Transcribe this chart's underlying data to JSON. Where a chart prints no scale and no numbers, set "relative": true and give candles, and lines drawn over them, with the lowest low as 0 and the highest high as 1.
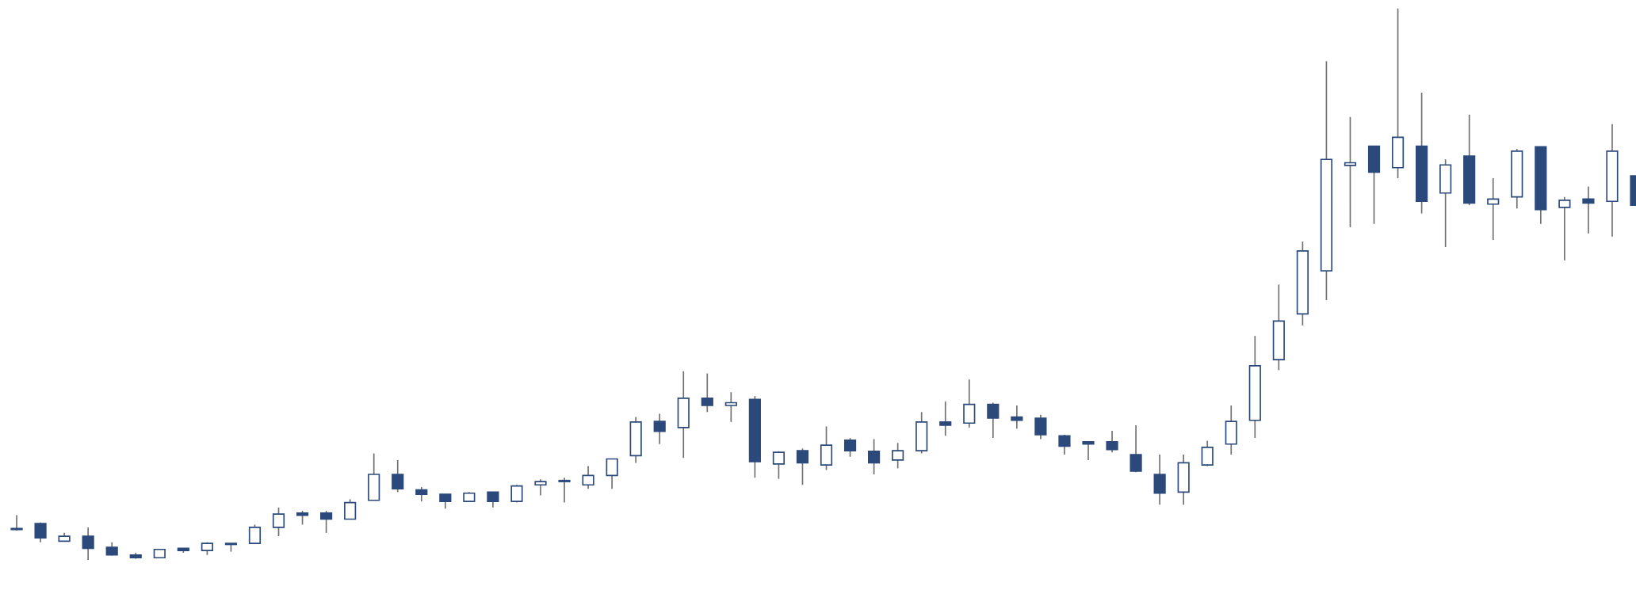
{
  "chart_data": {
    "type": "candlestick",
    "relative": true,
    "color": "#2b4a7b",
    "categories": [
      null,
      null,
      null,
      null,
      null,
      null,
      null,
      null,
      null,
      null,
      null,
      null,
      null,
      null,
      null,
      null,
      null,
      null,
      null,
      null,
      null,
      null,
      null,
      null,
      null,
      null,
      null,
      null,
      null,
      null,
      null,
      null,
      null,
      null,
      null,
      null,
      null,
      null,
      null,
      null,
      null,
      null,
      null,
      null,
      null,
      null,
      null,
      null,
      null,
      null,
      null,
      null,
      null,
      null,
      null,
      null,
      null,
      null,
      null,
      null,
      null,
      null,
      null,
      null,
      null,
      null,
      null,
      null,
      null
    ],
    "ohlc": [
      [
        0.057,
        0.081,
        0.053,
        0.055
      ],
      [
        0.066,
        0.068,
        0.032,
        0.04
      ],
      [
        0.034,
        0.049,
        0.034,
        0.043
      ],
      [
        0.043,
        0.059,
        0.0,
        0.021
      ],
      [
        0.023,
        0.032,
        0.008,
        0.009
      ],
      [
        0.009,
        0.013,
        0.002,
        0.004
      ],
      [
        0.004,
        0.019,
        0.004,
        0.019
      ],
      [
        0.021,
        0.021,
        0.013,
        0.017
      ],
      [
        0.017,
        0.032,
        0.009,
        0.03
      ],
      [
        0.03,
        0.03,
        0.015,
        0.028
      ],
      [
        0.03,
        0.064,
        0.03,
        0.059
      ],
      [
        0.059,
        0.095,
        0.043,
        0.083
      ],
      [
        0.085,
        0.089,
        0.064,
        0.081
      ],
      [
        0.085,
        0.089,
        0.049,
        0.074
      ],
      [
        0.074,
        0.11,
        0.074,
        0.104
      ],
      [
        0.108,
        0.193,
        0.108,
        0.155
      ],
      [
        0.155,
        0.181,
        0.123,
        0.129
      ],
      [
        0.127,
        0.132,
        0.106,
        0.119
      ],
      [
        0.119,
        0.119,
        0.093,
        0.106
      ],
      [
        0.106,
        0.123,
        0.106,
        0.121
      ],
      [
        0.123,
        0.123,
        0.095,
        0.106
      ],
      [
        0.106,
        0.136,
        0.104,
        0.134
      ],
      [
        0.136,
        0.146,
        0.117,
        0.142
      ],
      [
        0.144,
        0.149,
        0.104,
        0.142
      ],
      [
        0.136,
        0.17,
        0.129,
        0.153
      ],
      [
        0.153,
        0.183,
        0.129,
        0.183
      ],
      [
        0.189,
        0.259,
        0.176,
        0.25
      ],
      [
        0.251,
        0.265,
        0.21,
        0.233
      ],
      [
        0.24,
        0.342,
        0.185,
        0.293
      ],
      [
        0.293,
        0.338,
        0.268,
        0.28
      ],
      [
        0.28,
        0.304,
        0.25,
        0.285
      ],
      [
        0.291,
        0.297,
        0.149,
        0.178
      ],
      [
        0.174,
        0.197,
        0.147,
        0.195
      ],
      [
        0.198,
        0.202,
        0.136,
        0.176
      ],
      [
        0.172,
        0.242,
        0.163,
        0.208
      ],
      [
        0.217,
        0.221,
        0.187,
        0.198
      ],
      [
        0.197,
        0.219,
        0.155,
        0.176
      ],
      [
        0.181,
        0.212,
        0.166,
        0.198
      ],
      [
        0.198,
        0.268,
        0.193,
        0.25
      ],
      [
        0.25,
        0.287,
        0.225,
        0.244
      ],
      [
        0.248,
        0.327,
        0.24,
        0.282
      ],
      [
        0.282,
        0.285,
        0.221,
        0.257
      ],
      [
        0.259,
        0.28,
        0.238,
        0.253
      ],
      [
        0.257,
        0.263,
        0.219,
        0.227
      ],
      [
        0.225,
        0.227,
        0.191,
        0.206
      ],
      [
        0.214,
        0.214,
        0.181,
        0.21
      ],
      [
        0.214,
        0.234,
        0.195,
        0.2
      ],
      [
        0.191,
        0.244,
        0.159,
        0.161
      ],
      [
        0.155,
        0.191,
        0.1,
        0.121
      ],
      [
        0.123,
        0.191,
        0.1,
        0.176
      ],
      [
        0.172,
        0.216,
        0.17,
        0.204
      ],
      [
        0.21,
        0.28,
        0.191,
        0.251
      ],
      [
        0.253,
        0.406,
        0.221,
        0.352
      ],
      [
        0.363,
        0.499,
        0.344,
        0.433
      ],
      [
        0.446,
        0.577,
        0.425,
        0.56
      ],
      [
        0.524,
        0.904,
        0.471,
        0.726
      ],
      [
        0.715,
        0.803,
        0.603,
        0.72
      ],
      [
        0.75,
        0.75,
        0.609,
        0.703
      ],
      [
        0.711,
        1.0,
        0.692,
        0.766
      ],
      [
        0.75,
        0.847,
        0.628,
        0.65
      ],
      [
        0.665,
        0.726,
        0.567,
        0.716
      ],
      [
        0.732,
        0.807,
        0.643,
        0.647
      ],
      [
        0.645,
        0.692,
        0.58,
        0.654
      ],
      [
        0.658,
        0.745,
        0.637,
        0.741
      ],
      [
        0.749,
        0.749,
        0.609,
        0.635
      ],
      [
        0.639,
        0.658,
        0.543,
        0.652
      ],
      [
        0.654,
        0.677,
        0.592,
        0.647
      ],
      [
        0.65,
        0.79,
        0.586,
        0.741
      ],
      [
        0.696,
        0.696,
        0.643,
        0.643
      ]
    ]
  }
}
